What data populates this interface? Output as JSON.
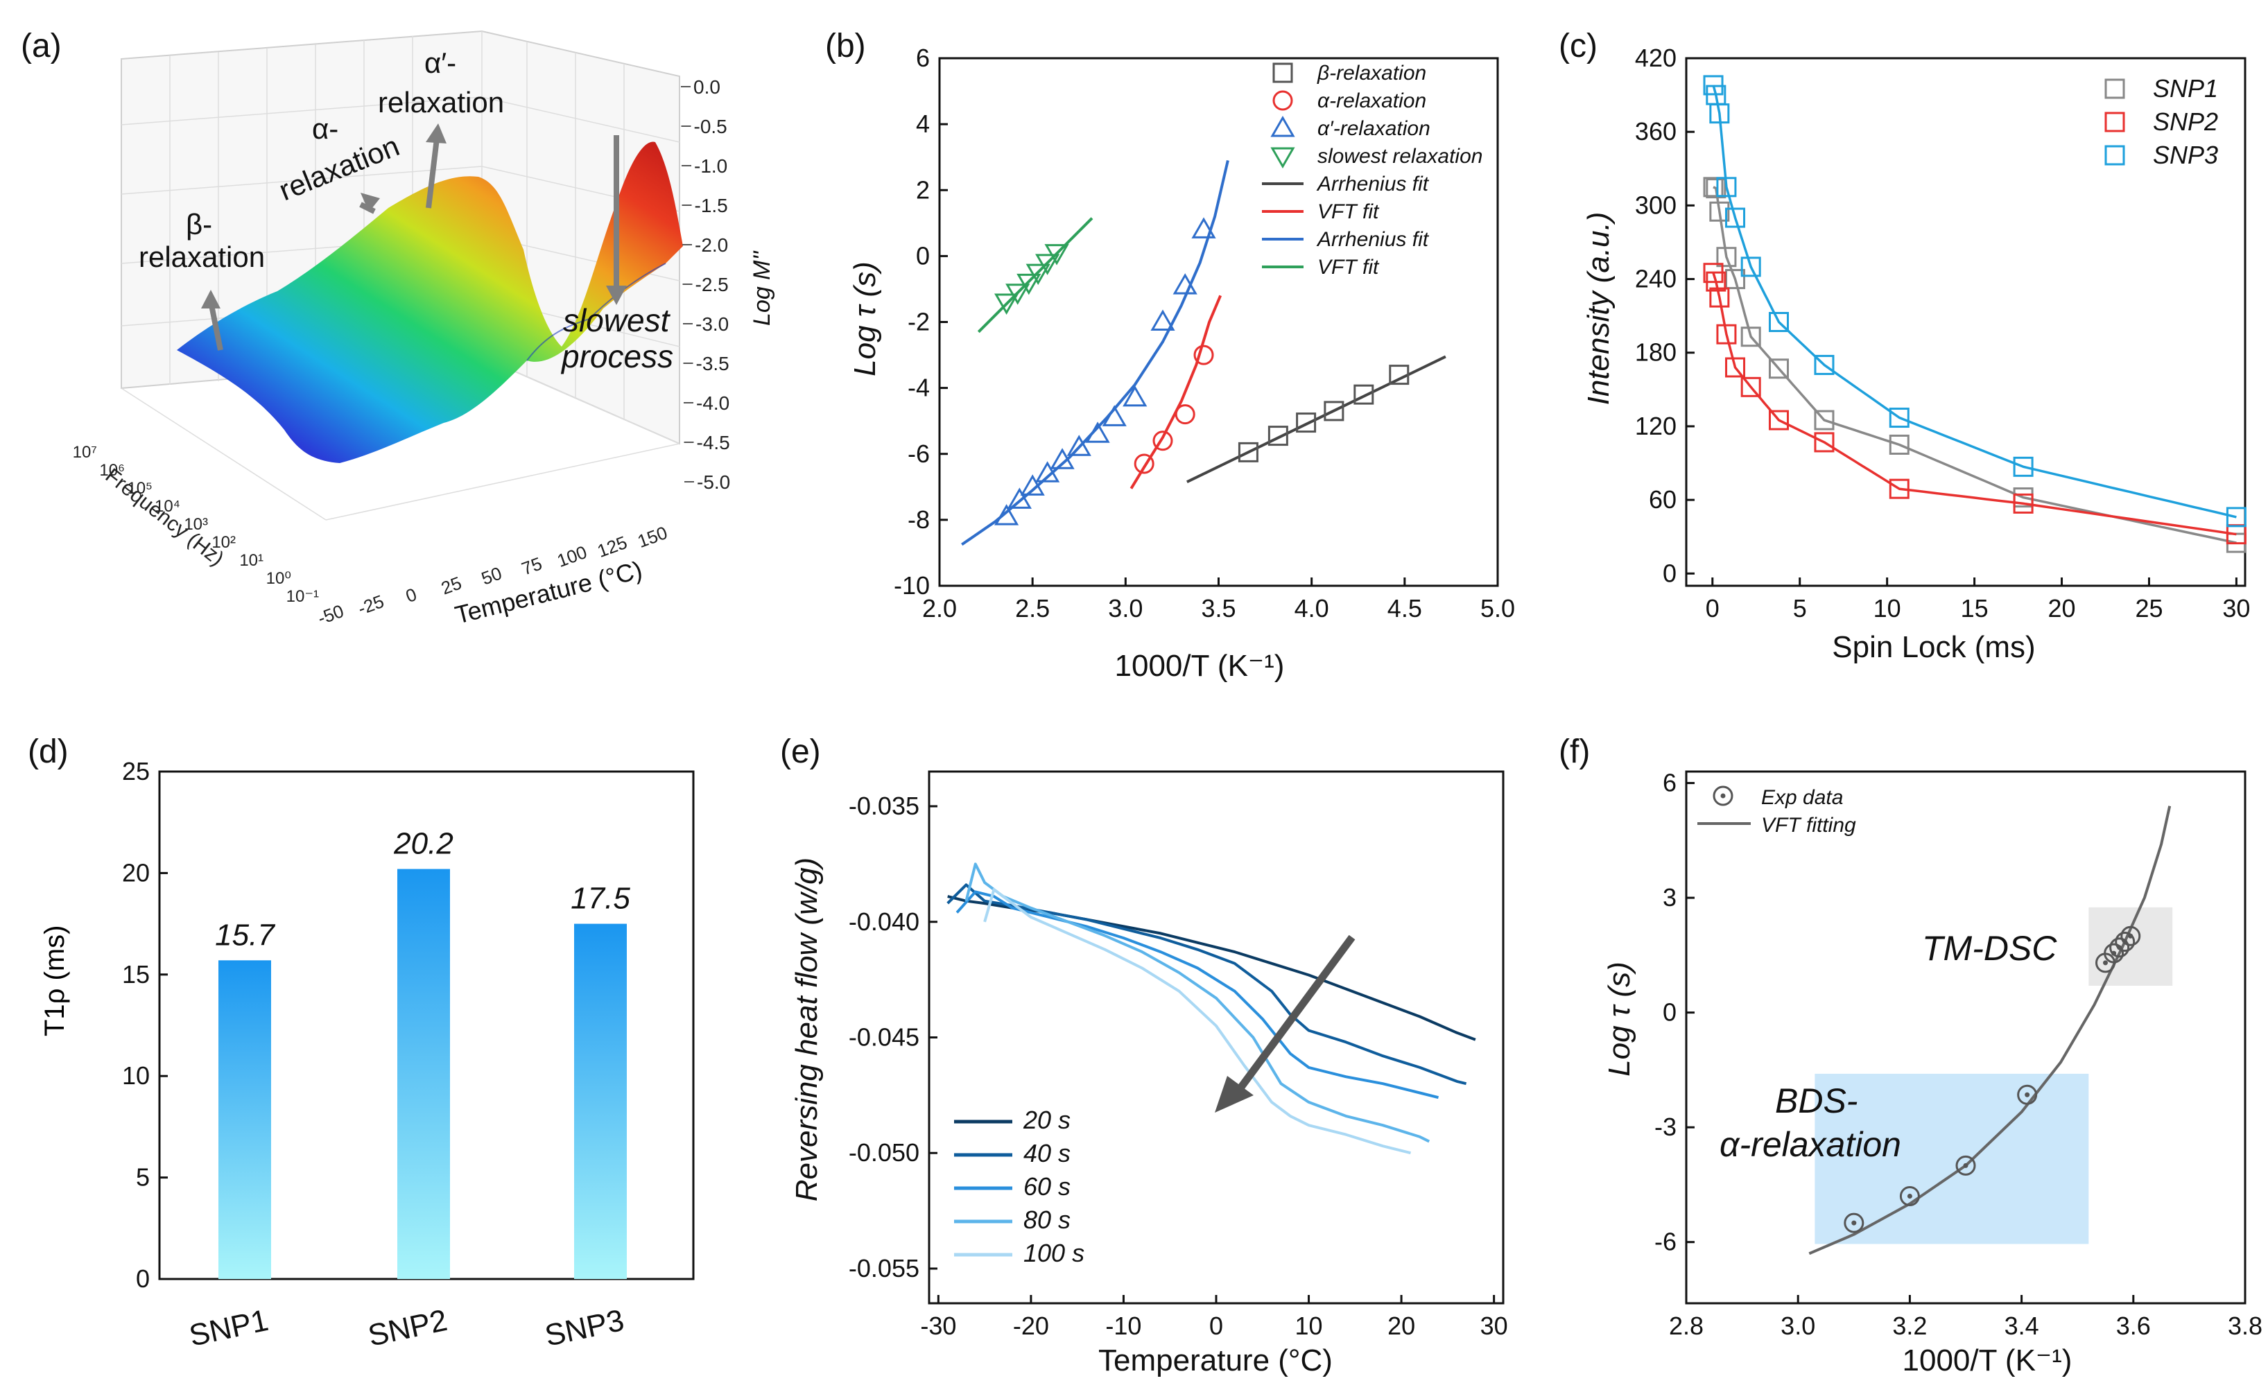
{
  "chart_data": [
    {
      "panel": "(a)",
      "type": "surface3d",
      "axis_labels": {
        "x": "Temperature (°C)",
        "y": "Frequency (Hz)",
        "z": "Log M''"
      },
      "x_ticks": [
        "-50",
        "-25",
        "0",
        "25",
        "50",
        "75",
        "100",
        "125",
        "150"
      ],
      "y_ticks": [
        "10⁻¹",
        "10⁰",
        "10¹",
        "10²",
        "10³",
        "10⁴",
        "10⁵",
        "10⁶",
        "10⁷"
      ],
      "z_ticks": [
        "0.0",
        "-0.5",
        "-1.0",
        "-1.5",
        "-2.0",
        "-2.5",
        "-3.0",
        "-3.5",
        "-4.0",
        "-4.5",
        "-5.0"
      ],
      "annotations": {
        "beta": [
          "β-",
          "relaxation"
        ],
        "alpha": [
          "α-",
          "relaxation"
        ],
        "alpha_prime": [
          "α′-",
          "relaxation"
        ],
        "slowest": [
          "slowest",
          "process"
        ]
      }
    },
    {
      "panel": "(b)",
      "type": "scatter",
      "xlabel": "1000/T (K⁻¹)",
      "ylabel": "Log τ (s)",
      "xlim": [
        2.0,
        5.0
      ],
      "ylim": [
        -10,
        6
      ],
      "x_ticks": [
        "2.0",
        "2.5",
        "3.0",
        "3.5",
        "4.0",
        "4.5",
        "5.0"
      ],
      "y_ticks": [
        "6",
        "4",
        "2",
        "0",
        "-2",
        "-4",
        "-6",
        "-8",
        "-10"
      ],
      "series": [
        {
          "name": "β-relaxation",
          "marker": "square",
          "color": "#555555",
          "x": [
            3.66,
            3.82,
            3.97,
            4.12,
            4.28,
            4.47
          ],
          "y": [
            -5.95,
            -5.45,
            -5.05,
            -4.7,
            -4.2,
            -3.6
          ]
        },
        {
          "name": "α-relaxation",
          "marker": "circle",
          "color": "#e8312f",
          "x": [
            3.1,
            3.2,
            3.32,
            3.42
          ],
          "y": [
            -6.3,
            -5.6,
            -4.8,
            -3.0
          ]
        },
        {
          "name": "α′-relaxation",
          "marker": "triangle-up",
          "color": "#2f6ecb",
          "x": [
            2.36,
            2.43,
            2.5,
            2.58,
            2.66,
            2.75,
            2.85,
            2.94,
            3.05,
            3.2,
            3.32,
            3.42
          ],
          "y": [
            -7.9,
            -7.4,
            -7.0,
            -6.6,
            -6.2,
            -5.8,
            -5.4,
            -4.9,
            -4.3,
            -2.0,
            -0.9,
            0.8
          ]
        },
        {
          "name": "slowest relaxation",
          "marker": "triangle-down",
          "color": "#2ea05a",
          "x": [
            2.36,
            2.42,
            2.48,
            2.53,
            2.58,
            2.63
          ],
          "y": [
            -1.4,
            -1.1,
            -0.8,
            -0.5,
            -0.2,
            0.1
          ]
        }
      ],
      "fits": [
        {
          "name": "Arrhenius fit",
          "color": "#444444",
          "x": [
            3.33,
            4.72
          ],
          "y": [
            -6.85,
            -3.05
          ]
        },
        {
          "name": "VFT fit",
          "color": "#e8312f",
          "x": [
            3.03,
            3.1,
            3.2,
            3.3,
            3.38,
            3.45,
            3.51
          ],
          "y": [
            -7.05,
            -6.4,
            -5.5,
            -4.4,
            -3.3,
            -2.0,
            -1.2
          ]
        },
        {
          "name": "Arrhenius fit",
          "color": "#2f6ecb",
          "x": [
            2.12,
            2.3,
            2.5,
            2.7,
            2.9,
            3.05,
            3.2,
            3.3,
            3.4,
            3.48,
            3.55
          ],
          "y": [
            -8.75,
            -8.05,
            -7.1,
            -6.1,
            -4.9,
            -3.9,
            -2.6,
            -1.5,
            -0.2,
            1.2,
            2.9
          ]
        },
        {
          "name": "VFT fit",
          "color": "#2ea05a",
          "x": [
            2.21,
            2.82
          ],
          "y": [
            -2.3,
            1.15
          ]
        }
      ]
    },
    {
      "panel": "(c)",
      "type": "scatter",
      "xlabel": "Spin Lock (ms)",
      "ylabel": "Intensity (a.u.)",
      "xlim": [
        -1.5,
        30.5
      ],
      "ylim": [
        -10,
        420
      ],
      "x_ticks": [
        "0",
        "5",
        "10",
        "15",
        "20",
        "25",
        "30"
      ],
      "y_ticks": [
        "420",
        "360",
        "300",
        "240",
        "180",
        "120",
        "60",
        "0"
      ],
      "series": [
        {
          "name": "SNP1",
          "marker": "square",
          "color": "#888888",
          "x": [
            0.05,
            0.2,
            0.4,
            0.8,
            1.3,
            2.2,
            3.8,
            6.4,
            10.7,
            17.8,
            30.0
          ],
          "y": [
            315,
            314,
            295,
            258,
            240,
            193,
            167,
            125,
            105,
            62,
            25
          ]
        },
        {
          "name": "SNP2",
          "marker": "square",
          "color": "#e8312f",
          "x": [
            0.05,
            0.2,
            0.4,
            0.8,
            1.3,
            2.2,
            3.8,
            6.4,
            10.7,
            17.8,
            30.0
          ],
          "y": [
            245,
            238,
            225,
            195,
            168,
            152,
            125,
            107,
            69,
            57,
            32
          ]
        },
        {
          "name": "SNP3",
          "marker": "square",
          "color": "#1ea0dc",
          "x": [
            0.05,
            0.2,
            0.4,
            0.8,
            1.3,
            2.2,
            3.8,
            6.4,
            10.7,
            17.8,
            30.0
          ],
          "y": [
            398,
            390,
            375,
            315,
            290,
            250,
            205,
            170,
            127,
            87,
            46
          ]
        }
      ]
    },
    {
      "panel": "(d)",
      "type": "bar",
      "ylabel": "T1ρ (ms)",
      "categories": [
        "SNP1",
        "SNP2",
        "SNP3"
      ],
      "values": [
        15.7,
        20.2,
        17.5
      ],
      "value_labels": [
        "15.7",
        "20.2",
        "17.5"
      ],
      "ylim": [
        0,
        25
      ],
      "y_ticks": [
        "25",
        "20",
        "15",
        "10",
        "5",
        "0"
      ],
      "gradient": [
        "#1a96f0",
        "#a9f5fa"
      ]
    },
    {
      "panel": "(e)",
      "type": "line",
      "xlabel": "Temperature (°C)",
      "ylabel": "Reversing heat flow (w/g)",
      "xlim": [
        -31,
        31
      ],
      "ylim": [
        -0.0565,
        -0.0335
      ],
      "x_ticks": [
        "-30",
        "-20",
        "-10",
        "0",
        "10",
        "20",
        "30"
      ],
      "y_ticks": [
        "-0.035",
        "-0.040",
        "-0.045",
        "-0.050",
        "-0.055"
      ],
      "series": [
        {
          "name": "20 s",
          "color": "#0b3b63",
          "x": [
            -29,
            -27,
            -25,
            -22,
            -18,
            -14,
            -10,
            -6,
            -2,
            2,
            6,
            10,
            14,
            18,
            22,
            26,
            28
          ],
          "y": [
            -0.0389,
            -0.0391,
            -0.0392,
            -0.0394,
            -0.0396,
            -0.0399,
            -0.0402,
            -0.0405,
            -0.0409,
            -0.0413,
            -0.0418,
            -0.0423,
            -0.0429,
            -0.0435,
            -0.0441,
            -0.0448,
            -0.0451
          ]
        },
        {
          "name": "40 s",
          "color": "#0f5d9c",
          "x": [
            -29,
            -27,
            -25,
            -22,
            -18,
            -14,
            -10,
            -6,
            -2,
            2,
            6,
            8,
            10,
            14,
            18,
            22,
            26,
            27
          ],
          "y": [
            -0.0392,
            -0.0384,
            -0.0391,
            -0.0393,
            -0.0396,
            -0.0399,
            -0.0403,
            -0.0407,
            -0.0412,
            -0.0418,
            -0.043,
            -0.044,
            -0.0447,
            -0.0452,
            -0.0458,
            -0.0463,
            -0.0469,
            -0.047
          ]
        },
        {
          "name": "60 s",
          "color": "#2a8fdc",
          "x": [
            -28,
            -26,
            -24,
            -22,
            -18,
            -14,
            -10,
            -6,
            -2,
            2,
            5,
            8,
            10,
            14,
            18,
            22,
            24
          ],
          "y": [
            -0.0396,
            -0.0387,
            -0.0389,
            -0.0394,
            -0.0398,
            -0.0402,
            -0.0407,
            -0.0413,
            -0.042,
            -0.043,
            -0.0442,
            -0.0457,
            -0.0463,
            -0.0467,
            -0.047,
            -0.0474,
            -0.0476
          ]
        },
        {
          "name": "80 s",
          "color": "#5cb4ea",
          "x": [
            -27,
            -26,
            -25,
            -23,
            -20,
            -16,
            -12,
            -8,
            -4,
            0,
            4,
            7,
            10,
            14,
            18,
            22,
            23
          ],
          "y": [
            -0.0391,
            -0.0375,
            -0.0383,
            -0.0389,
            -0.0394,
            -0.04,
            -0.0406,
            -0.0413,
            -0.0422,
            -0.0433,
            -0.045,
            -0.047,
            -0.0478,
            -0.0484,
            -0.0488,
            -0.0493,
            -0.0495
          ]
        },
        {
          "name": "100 s",
          "color": "#a9d8f4",
          "x": [
            -25,
            -24,
            -22,
            -20,
            -16,
            -12,
            -8,
            -4,
            0,
            3,
            6,
            8,
            10,
            14,
            18,
            21
          ],
          "y": [
            -0.04,
            -0.0386,
            -0.0392,
            -0.0398,
            -0.0405,
            -0.0412,
            -0.042,
            -0.043,
            -0.0445,
            -0.0462,
            -0.0478,
            -0.0484,
            -0.0488,
            -0.0492,
            -0.0497,
            -0.05
          ]
        }
      ]
    },
    {
      "panel": "(f)",
      "type": "scatter",
      "xlabel": "1000/T (K⁻¹)",
      "ylabel": "Log τ (s)",
      "xlim": [
        2.8,
        3.8
      ],
      "ylim": [
        -7.6,
        6.3
      ],
      "x_ticks": [
        "2.8",
        "3.0",
        "3.2",
        "3.4",
        "3.6",
        "3.8"
      ],
      "y_ticks": [
        "6",
        "3",
        "0",
        "-3",
        "-6"
      ],
      "series": [
        {
          "name": "Exp data",
          "marker": "circle-dot",
          "color": "#555555",
          "x": [
            3.1,
            3.2,
            3.3,
            3.41,
            3.55,
            3.565,
            3.575,
            3.585,
            3.595
          ],
          "y": [
            -5.5,
            -4.8,
            -4.0,
            -2.15,
            1.3,
            1.55,
            1.7,
            1.85,
            2.0
          ]
        },
        {
          "name": "VFT fitting",
          "color": "#666666",
          "line": true,
          "x": [
            3.02,
            3.1,
            3.2,
            3.3,
            3.4,
            3.47,
            3.53,
            3.58,
            3.62,
            3.65,
            3.665
          ],
          "y": [
            -6.3,
            -5.8,
            -5.0,
            -4.0,
            -2.6,
            -1.3,
            0.2,
            1.7,
            3.0,
            4.4,
            5.4
          ]
        }
      ],
      "annotations": {
        "tm": "TM-DSC",
        "bds": [
          "BDS-",
          "α-relaxation"
        ]
      }
    }
  ],
  "labels": {
    "a": "(a)",
    "b": "(b)",
    "c": "(c)",
    "d": "(d)",
    "e": "(e)",
    "f": "(f)"
  }
}
